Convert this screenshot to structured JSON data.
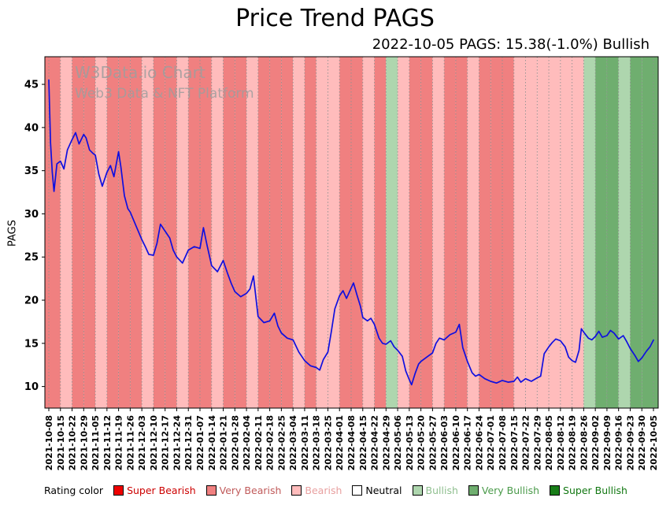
{
  "page": {
    "title": "Price Trend PAGS",
    "subtitle": "2022-10-05 PAGS: 15.38(-1.0%) Bullish"
  },
  "watermark": {
    "line1": "W3Data.io Chart",
    "line2": "Web3 Data & NFT Platform"
  },
  "legend": {
    "label": "Rating color",
    "items": [
      {
        "label": "Super Bearish",
        "color": "#ee0000",
        "text_color": "#cc0000"
      },
      {
        "label": "Very Bearish",
        "color": "#f08080",
        "text_color": "#c05a5a"
      },
      {
        "label": "Bearish",
        "color": "#ffbcbc",
        "text_color": "#e8a0a0"
      },
      {
        "label": "Neutral",
        "color": "#ffffff",
        "text_color": "#000000"
      },
      {
        "label": "Bullish",
        "color": "#aed6ae",
        "text_color": "#8fbf8f"
      },
      {
        "label": "Very Bullish",
        "color": "#6fae6f",
        "text_color": "#4a9a4a"
      },
      {
        "label": "Super Bullish",
        "color": "#187d18",
        "text_color": "#117711"
      }
    ]
  },
  "chart_data": {
    "type": "line",
    "title": "Price Trend PAGS",
    "xlabel": "",
    "ylabel": "PAGS",
    "ylim": [
      7.5,
      48.2
    ],
    "yticks": [
      10,
      15,
      20,
      25,
      30,
      35,
      40,
      45
    ],
    "grid": "vertical-dashed",
    "legend_position": "bottom",
    "categories": [
      "2021-10-08",
      "2021-10-15",
      "2021-10-22",
      "2021-10-29",
      "2021-11-05",
      "2021-11-12",
      "2021-11-19",
      "2021-11-26",
      "2021-12-03",
      "2021-12-10",
      "2021-12-17",
      "2021-12-24",
      "2021-12-31",
      "2022-01-07",
      "2022-01-14",
      "2022-01-21",
      "2022-01-28",
      "2022-02-04",
      "2022-02-11",
      "2022-02-18",
      "2022-02-25",
      "2022-03-04",
      "2022-03-11",
      "2022-03-18",
      "2022-03-25",
      "2022-04-01",
      "2022-04-08",
      "2022-04-15",
      "2022-04-22",
      "2022-04-29",
      "2022-05-06",
      "2022-05-13",
      "2022-05-20",
      "2022-05-27",
      "2022-06-03",
      "2022-06-10",
      "2022-06-17",
      "2022-06-24",
      "2022-07-01",
      "2022-07-08",
      "2022-07-15",
      "2022-07-22",
      "2022-07-29",
      "2022-08-05",
      "2022-08-12",
      "2022-08-19",
      "2022-08-26",
      "2022-09-02",
      "2022-09-09",
      "2022-09-16",
      "2022-09-23",
      "2022-09-30",
      "2022-10-05"
    ],
    "band_ratings": [
      "very_bearish",
      "bearish",
      "very_bearish",
      "very_bearish",
      "bearish",
      "very_bearish",
      "very_bearish",
      "very_bearish",
      "bearish",
      "very_bearish",
      "very_bearish",
      "bearish",
      "very_bearish",
      "very_bearish",
      "bearish",
      "very_bearish",
      "very_bearish",
      "bearish",
      "very_bearish",
      "very_bearish",
      "very_bearish",
      "bearish",
      "very_bearish",
      "bearish",
      "bearish",
      "very_bearish",
      "very_bearish",
      "bearish",
      "very_bearish",
      "bullish",
      "bearish",
      "very_bearish",
      "very_bearish",
      "bearish",
      "very_bearish",
      "very_bearish",
      "bearish",
      "very_bearish",
      "very_bearish",
      "very_bearish",
      "bearish",
      "bearish",
      "bearish",
      "bearish",
      "bearish",
      "bearish",
      "bullish",
      "very_bullish",
      "very_bullish",
      "bullish",
      "very_bullish",
      "very_bullish"
    ],
    "rating_colors": {
      "super_bearish": "#ee0000",
      "very_bearish": "#f08080",
      "bearish": "#ffbcbc",
      "neutral": "#ffffff",
      "bullish": "#aed6ae",
      "very_bullish": "#6fae6f",
      "super_bullish": "#187d18"
    },
    "series": [
      {
        "name": "PAGS",
        "color": "#0f0fe0",
        "x": [
          0,
          0.15,
          0.3,
          0.45,
          0.7,
          1,
          1.3,
          1.6,
          2,
          2.3,
          2.6,
          3,
          3.2,
          3.5,
          3.8,
          4,
          4.3,
          4.6,
          5,
          5.3,
          5.6,
          6,
          6.2,
          6.5,
          6.8,
          7,
          7.5,
          8,
          8.3,
          8.6,
          9,
          9.3,
          9.6,
          10,
          10.4,
          10.7,
          11,
          11.5,
          12,
          12.5,
          13,
          13.3,
          13.6,
          14,
          14.5,
          15,
          15.4,
          15.7,
          16,
          16.5,
          17,
          17.3,
          17.6,
          18,
          18.5,
          19,
          19.4,
          19.7,
          20,
          20.5,
          21,
          21.5,
          22,
          22.5,
          23,
          23.3,
          23.6,
          24,
          24.3,
          24.6,
          25,
          25.3,
          25.6,
          26,
          26.2,
          26.5,
          26.8,
          27,
          27.4,
          27.7,
          28,
          28.4,
          28.7,
          29,
          29.4,
          29.7,
          30,
          30.4,
          30.7,
          31,
          31.2,
          31.5,
          31.8,
          32,
          32.5,
          33,
          33.3,
          33.6,
          34,
          34.5,
          35,
          35.3,
          35.6,
          36,
          36.4,
          36.7,
          37,
          37.5,
          38,
          38.5,
          39,
          39.5,
          40,
          40.3,
          40.6,
          41,
          41.5,
          42,
          42.3,
          42.6,
          43,
          43.3,
          43.6,
          44,
          44.4,
          44.7,
          45,
          45.3,
          45.6,
          45.8,
          46,
          46.4,
          46.7,
          47,
          47.3,
          47.6,
          48,
          48.3,
          48.6,
          49,
          49.4,
          49.7,
          50,
          50.4,
          50.7,
          51,
          51.4,
          51.7,
          52
        ],
        "y": [
          45.5,
          38.2,
          34.8,
          32.6,
          35.8,
          36.1,
          35.2,
          37.4,
          38.6,
          39.4,
          38.1,
          39.2,
          38.8,
          37.4,
          37.0,
          36.8,
          34.6,
          33.2,
          34.8,
          35.6,
          34.3,
          37.2,
          35.4,
          32.1,
          30.6,
          30.2,
          28.6,
          27.0,
          26.2,
          25.3,
          25.2,
          26.6,
          28.8,
          28.0,
          27.2,
          25.8,
          25.0,
          24.3,
          25.8,
          26.2,
          26.0,
          28.4,
          26.4,
          24.0,
          23.3,
          24.6,
          23.0,
          21.9,
          21.0,
          20.4,
          20.8,
          21.3,
          22.8,
          18.1,
          17.4,
          17.6,
          18.5,
          17.0,
          16.2,
          15.6,
          15.4,
          14.0,
          13.0,
          12.4,
          12.2,
          11.9,
          13.1,
          14.0,
          16.4,
          19.0,
          20.5,
          21.1,
          20.2,
          21.4,
          22.0,
          20.6,
          19.3,
          18.0,
          17.6,
          17.9,
          17.2,
          15.6,
          15.0,
          14.9,
          15.3,
          14.6,
          14.2,
          13.5,
          11.8,
          10.8,
          10.2,
          11.5,
          12.6,
          12.9,
          13.4,
          13.9,
          15.0,
          15.6,
          15.4,
          16.0,
          16.3,
          17.2,
          14.5,
          12.9,
          11.6,
          11.2,
          11.4,
          10.9,
          10.6,
          10.4,
          10.7,
          10.5,
          10.6,
          11.1,
          10.5,
          10.9,
          10.6,
          11.0,
          11.2,
          13.8,
          14.6,
          15.1,
          15.5,
          15.3,
          14.6,
          13.4,
          13.0,
          12.8,
          14.2,
          16.7,
          16.3,
          15.6,
          15.4,
          15.8,
          16.4,
          15.7,
          15.9,
          16.5,
          16.2,
          15.5,
          15.9,
          15.2,
          14.4,
          13.6,
          12.9,
          13.3,
          14.1,
          14.6,
          15.38
        ]
      }
    ],
    "last_point": {
      "date": "2022-10-05",
      "value": 15.38,
      "change_pct": -1.0,
      "rating": "Bullish"
    }
  }
}
